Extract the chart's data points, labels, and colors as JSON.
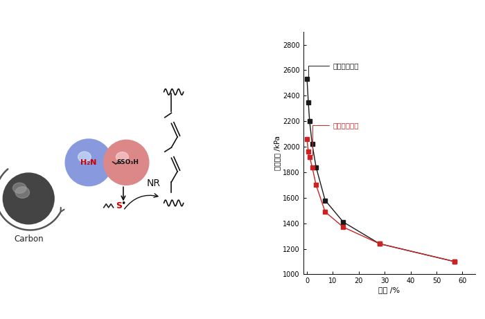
{
  "black_x": [
    0.0,
    0.5,
    1.0,
    2.0,
    3.5,
    7.0,
    14.0,
    28.0,
    57.0
  ],
  "black_y": [
    2530,
    2350,
    2200,
    2020,
    1840,
    1580,
    1410,
    1240,
    1100
  ],
  "red_x": [
    0.0,
    0.5,
    1.0,
    2.0,
    3.5,
    7.0,
    14.0,
    28.0,
    57.0
  ],
  "red_y": [
    2060,
    1960,
    1920,
    1840,
    1700,
    1490,
    1370,
    1240,
    1100
  ],
  "black_color": "#1a1a1a",
  "red_color": "#cc2222",
  "xlabel": "应变 /%",
  "ylabel": "储能模量 /kPa",
  "label_black": "无炭黑偶联剂",
  "label_red": "加炭黑偶联剂",
  "ylim": [
    1000,
    2900
  ],
  "xlim": [
    -1.5,
    65
  ],
  "yticks": [
    1000,
    1200,
    1400,
    1600,
    1800,
    2000,
    2200,
    2400,
    2600,
    2800
  ],
  "xticks": [
    0,
    10,
    20,
    30,
    40,
    50,
    60
  ],
  "bg_color": "#ffffff",
  "carbon_color": "#555555",
  "nh2_color": "#8899cc",
  "sso3h_color": "#cc7777",
  "arrow_color": "#333333",
  "s_color": "#cc0000",
  "nr_color": "#1a1a1a"
}
